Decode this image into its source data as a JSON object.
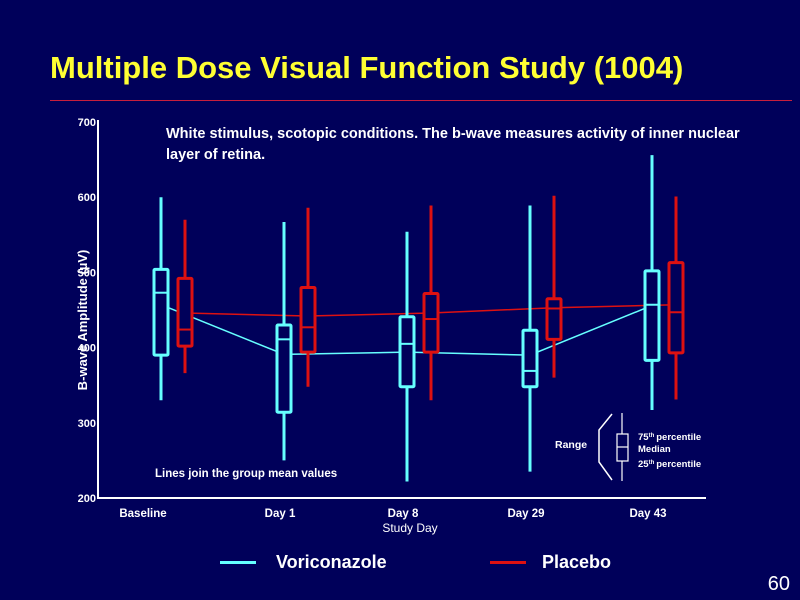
{
  "slide": {
    "title": "Multiple Dose Visual Function Study (1004)",
    "page_number": "60"
  },
  "colors": {
    "background": "#00005a",
    "title": "#ffff33",
    "rule": "#c81e3c",
    "voriconazole": "#66ffff",
    "placebo": "#dd1111",
    "text": "#ffffff"
  },
  "chart_data": {
    "type": "box",
    "ylabel": "B-wave Amplitude (µV)",
    "xlabel": "Study Day",
    "ylim": [
      200,
      700
    ],
    "yticks": [
      "200",
      "300",
      "400",
      "500",
      "600",
      "700"
    ],
    "categories": [
      "Baseline",
      "Day 1",
      "Day 8",
      "Day 29",
      "Day 43"
    ],
    "annotation": "White stimulus, scotopic conditions. The b-wave measures activity of inner nuclear layer of retina.",
    "lines_note": "Lines join the group mean values",
    "series": [
      {
        "name": "Voriconazole",
        "color": "#66ffff",
        "boxes": [
          {
            "min": 330,
            "q1": 390,
            "median": 473,
            "q3": 504,
            "max": 600
          },
          {
            "min": 250,
            "q1": 314,
            "median": 411,
            "q3": 430,
            "max": 567
          },
          {
            "min": 222,
            "q1": 348,
            "median": 405,
            "q3": 441,
            "max": 554
          },
          {
            "min": 235,
            "q1": 348,
            "median": 369,
            "q3": 423,
            "max": 589
          },
          {
            "min": 317,
            "q1": 383,
            "median": 457,
            "q3": 502,
            "max": 656
          }
        ],
        "means": [
          457,
          391,
          394,
          390,
          456
        ]
      },
      {
        "name": "Placebo",
        "color": "#dd1111",
        "boxes": [
          {
            "min": 366,
            "q1": 402,
            "median": 424,
            "q3": 492,
            "max": 570
          },
          {
            "min": 348,
            "q1": 394,
            "median": 427,
            "q3": 480,
            "max": 586
          },
          {
            "min": 330,
            "q1": 394,
            "median": 438,
            "q3": 472,
            "max": 589
          },
          {
            "min": 360,
            "q1": 411,
            "median": 452,
            "q3": 465,
            "max": 602
          },
          {
            "min": 331,
            "q1": 393,
            "median": 447,
            "q3": 513,
            "max": 601
          }
        ],
        "means": [
          446,
          442,
          446,
          453,
          457
        ]
      }
    ],
    "key": {
      "range": "Range",
      "p75": "75",
      "p75_suffix": "th",
      "p75_label": "percentile",
      "median": "Median",
      "p25": "25",
      "p25_suffix": "th",
      "p25_label": "percentile"
    }
  }
}
